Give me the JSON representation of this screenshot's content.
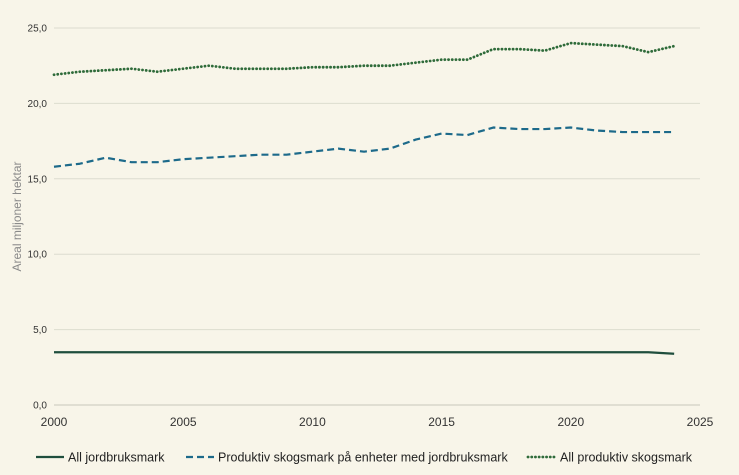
{
  "chart_data": {
    "type": "line",
    "title": "",
    "xlabel": "",
    "ylabel": "Areal miljoner hektar",
    "xlim": [
      2000,
      2025
    ],
    "ylim": [
      0,
      25
    ],
    "x_ticks": [
      2000,
      2005,
      2010,
      2015,
      2020,
      2025
    ],
    "x_tick_labels": [
      "2000",
      "2005",
      "2010",
      "2015",
      "2020",
      "2025"
    ],
    "y_ticks": [
      0,
      5,
      10,
      15,
      20,
      25
    ],
    "y_tick_labels": [
      "0,0",
      "5,0",
      "10,0",
      "15,0",
      "20,0",
      "25,0"
    ],
    "grid": "horizontal",
    "legend_position": "bottom",
    "x": [
      2000,
      2001,
      2002,
      2003,
      2004,
      2005,
      2006,
      2007,
      2008,
      2009,
      2010,
      2011,
      2012,
      2013,
      2014,
      2015,
      2016,
      2017,
      2018,
      2019,
      2020,
      2021,
      2022,
      2023,
      2024
    ],
    "series": [
      {
        "name": "All jordbruksmark",
        "color": "#1f4e3d",
        "dash": "solid",
        "values": [
          3.5,
          3.5,
          3.5,
          3.5,
          3.5,
          3.5,
          3.5,
          3.5,
          3.5,
          3.5,
          3.5,
          3.5,
          3.5,
          3.5,
          3.5,
          3.5,
          3.5,
          3.5,
          3.5,
          3.5,
          3.5,
          3.5,
          3.5,
          3.5,
          3.4
        ]
      },
      {
        "name": "Produktiv skogsmark på  enheter med jordbruksmark",
        "color": "#1d6a8a",
        "dash": "dashed",
        "values": [
          15.8,
          16.0,
          16.4,
          16.1,
          16.1,
          16.3,
          16.4,
          16.5,
          16.6,
          16.6,
          16.8,
          17.0,
          16.8,
          17.0,
          17.6,
          18.0,
          17.9,
          18.4,
          18.3,
          18.3,
          18.4,
          18.2,
          18.1,
          18.1,
          18.1
        ]
      },
      {
        "name": "All produktiv skogsmark",
        "color": "#2f6b3a",
        "dash": "dotted",
        "values": [
          21.9,
          22.1,
          22.2,
          22.3,
          22.1,
          22.3,
          22.5,
          22.3,
          22.3,
          22.3,
          22.4,
          22.4,
          22.5,
          22.5,
          22.7,
          22.9,
          22.9,
          23.6,
          23.6,
          23.5,
          24.0,
          23.9,
          23.8,
          23.4,
          23.8
        ]
      }
    ]
  }
}
